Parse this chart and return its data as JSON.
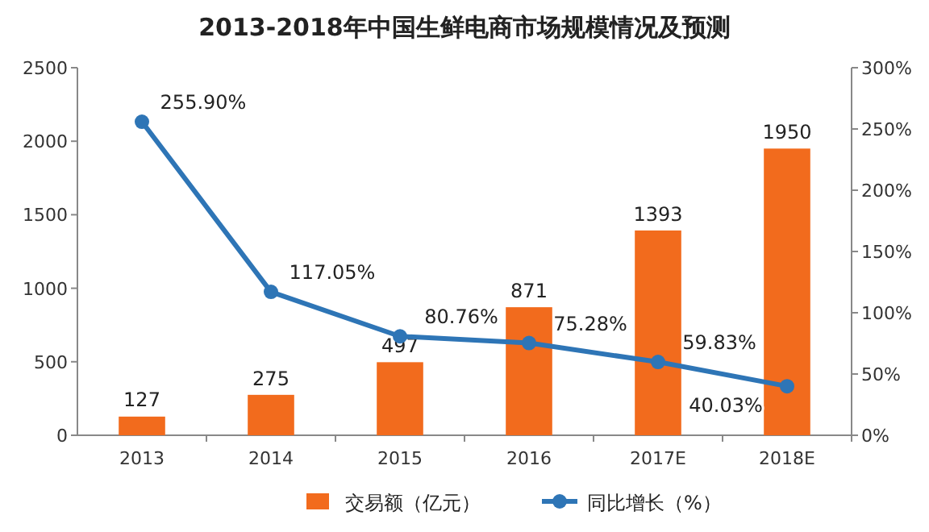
{
  "chart_data": {
    "type": "bar",
    "title": "2013-2018年中国生鲜电商市场规模情况及预测",
    "categories": [
      "2013",
      "2014",
      "2015",
      "2016",
      "2017E",
      "2018E"
    ],
    "series": [
      {
        "name": "交易额（亿元）",
        "color": "#f26b1d",
        "values": [
          127,
          275,
          497,
          871,
          1393,
          1950
        ],
        "value_labels": [
          "127",
          "275",
          "497",
          "871",
          "1393",
          "1950"
        ]
      },
      {
        "name": "同比增长（%）",
        "type": "line",
        "axis": "y2",
        "color": "#2e75b6",
        "marker": "circle",
        "line_style": "solid",
        "values": [
          255.9,
          117.05,
          80.76,
          75.28,
          59.83,
          40.03
        ],
        "value_labels": [
          "255.90%",
          "117.05%",
          "80.76%",
          "75.28%",
          "59.83%",
          "40.03%"
        ]
      }
    ],
    "ylim": [
      0,
      2500
    ],
    "yticks": [
      0,
      500,
      1000,
      1500,
      2000,
      2500
    ],
    "y2lim": [
      0,
      300
    ],
    "y2ticks": [
      {
        "value": 0,
        "label": "0%"
      },
      {
        "value": 50,
        "label": "50%"
      },
      {
        "value": 100,
        "label": "100%"
      },
      {
        "value": 150,
        "label": "150%"
      },
      {
        "value": 200,
        "label": "200%"
      },
      {
        "value": 250,
        "label": "250%"
      },
      {
        "value": 300,
        "label": "300%"
      }
    ],
    "legend": "bottom"
  }
}
